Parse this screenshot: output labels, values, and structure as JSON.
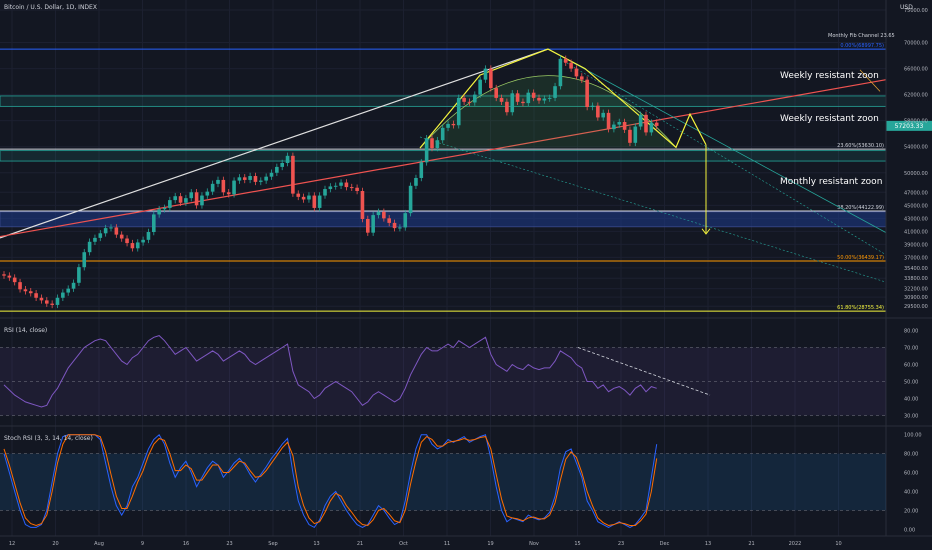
{
  "header": {
    "symbol": "Bitcoin / U.S. Dollar, 1D, INDEX",
    "currency": "USD"
  },
  "annotations": {
    "weekly_zone_1": "Weekly resistant zoon",
    "weekly_zone_2": "Weekly resistant zoon",
    "monthly_zone": "Monthly resistant zoon",
    "fib_channel": "Monthly Fib Channel 23.65"
  },
  "fib_levels": [
    {
      "label": "0.00%(68997.75)",
      "price": 68997.75,
      "color": "#2962ff"
    },
    {
      "label": "23.60%(53630.10)",
      "price": 53630.1,
      "color": "#d1d4dc"
    },
    {
      "label": "38.20%(44122.99)",
      "price": 44122.99,
      "color": "#d1d4dc"
    },
    {
      "label": "50.00%(36439.17)",
      "price": 36439.17,
      "color": "#ff9800"
    },
    {
      "label": "61.80%(28755.34)",
      "price": 28755.34,
      "color": "#f5f53d"
    }
  ],
  "colors": {
    "up": "#26a69a",
    "down": "#ef5350",
    "rsi": "#7e57c2",
    "stoch_k": "#2962ff",
    "stoch_d": "#ff6d00",
    "zone": "#26a69a",
    "monthly_zone": "#1e3a8a"
  },
  "chart_data": [
    {
      "type": "candlestick",
      "title": "Bitcoin / U.S. Dollar, 1D, INDEX",
      "ylim": [
        28000,
        75000
      ],
      "y_ticks": [
        29500,
        30900,
        32200,
        33800,
        35400,
        37000,
        39000,
        41000,
        43000,
        45000,
        47000,
        50000,
        54000,
        58000,
        62000,
        66000,
        70000,
        75000
      ],
      "price_tag": {
        "label": "57203.33",
        "value": 57203.33
      },
      "x_ticks": [
        "12",
        "20",
        "Aug",
        "9",
        "16",
        "23",
        "Sep",
        "13",
        "21",
        "Oct",
        "11",
        "19",
        "Nov",
        "15",
        "23",
        "Dec",
        "13",
        "21",
        "2022",
        "10"
      ],
      "close": [
        34200,
        33900,
        33200,
        32100,
        31800,
        31500,
        30800,
        30400,
        29900,
        29700,
        30800,
        31600,
        32200,
        33100,
        35500,
        37800,
        39400,
        40000,
        40700,
        41500,
        41600,
        40500,
        39900,
        39200,
        38400,
        39300,
        39700,
        40900,
        43600,
        44400,
        44600,
        45800,
        46400,
        45400,
        46100,
        47000,
        45000,
        46500,
        47100,
        48300,
        48900,
        47000,
        46700,
        48800,
        49300,
        48900,
        49500,
        48600,
        48800,
        49400,
        50000,
        50900,
        51500,
        52600,
        46800,
        46300,
        45900,
        46500,
        44600,
        46500,
        47500,
        47900,
        48000,
        48500,
        47800,
        47700,
        47200,
        42900,
        40800,
        43500,
        44000,
        43000,
        42300,
        41500,
        41600,
        43800,
        48000,
        49200,
        51600,
        55300,
        53800,
        55000,
        56900,
        57500,
        57300,
        61500,
        60900,
        60800,
        62000,
        64300,
        66000,
        63000,
        61500,
        60900,
        59300,
        62200,
        60900,
        60700,
        62300,
        61500,
        61100,
        61400,
        61500,
        63300,
        67500,
        66900,
        66000,
        64800,
        64300,
        60100,
        60300,
        58500,
        59200,
        56700,
        57400,
        57800,
        56600,
        54600,
        57100,
        58900,
        56200,
        57700,
        57200
      ],
      "rsi": {
        "name": "RSI (14, close)",
        "ylim": [
          25,
          85
        ],
        "levels": [
          70,
          50,
          30
        ],
        "y_ticks": [
          80,
          70,
          60,
          50,
          40,
          30
        ],
        "values": [
          48,
          45,
          42,
          40,
          38,
          37,
          36,
          35,
          36,
          42,
          46,
          52,
          58,
          62,
          66,
          70,
          72,
          74,
          75,
          74,
          70,
          66,
          62,
          60,
          64,
          66,
          70,
          74,
          76,
          77,
          74,
          70,
          66,
          68,
          70,
          66,
          62,
          64,
          66,
          68,
          66,
          62,
          64,
          66,
          68,
          66,
          62,
          60,
          62,
          64,
          66,
          68,
          70,
          72,
          56,
          48,
          46,
          44,
          40,
          42,
          46,
          48,
          50,
          48,
          46,
          44,
          40,
          36,
          38,
          42,
          44,
          42,
          40,
          38,
          40,
          46,
          54,
          60,
          66,
          70,
          68,
          68,
          70,
          72,
          70,
          74,
          72,
          70,
          72,
          74,
          76,
          66,
          60,
          58,
          56,
          60,
          58,
          57,
          60,
          58,
          57,
          58,
          58,
          62,
          68,
          66,
          64,
          60,
          58,
          50,
          50,
          46,
          48,
          44,
          46,
          47,
          45,
          42,
          46,
          48,
          44,
          47,
          46
        ]
      },
      "stoch": {
        "name": "Stoch RSI (3, 3, 14, 14, close)",
        "ylim": [
          -5,
          105
        ],
        "levels": [
          80,
          20
        ],
        "y_ticks": [
          100,
          80,
          60,
          40,
          20,
          0
        ],
        "k": [
          80,
          60,
          40,
          20,
          5,
          2,
          2,
          5,
          20,
          50,
          80,
          98,
          100,
          100,
          100,
          100,
          100,
          100,
          95,
          70,
          45,
          25,
          15,
          25,
          45,
          55,
          70,
          85,
          95,
          100,
          90,
          70,
          55,
          65,
          72,
          60,
          45,
          55,
          65,
          72,
          68,
          55,
          62,
          70,
          75,
          68,
          58,
          50,
          58,
          66,
          75,
          82,
          90,
          96,
          60,
          30,
          15,
          5,
          2,
          10,
          25,
          35,
          40,
          30,
          20,
          12,
          5,
          2,
          5,
          15,
          25,
          20,
          12,
          5,
          8,
          30,
          60,
          85,
          100,
          100,
          90,
          85,
          88,
          95,
          92,
          95,
          98,
          92,
          95,
          98,
          100,
          75,
          45,
          20,
          8,
          12,
          10,
          8,
          15,
          12,
          10,
          12,
          18,
          35,
          65,
          82,
          85,
          70,
          55,
          30,
          20,
          8,
          5,
          2,
          5,
          8,
          5,
          2,
          5,
          12,
          20,
          55,
          90
        ],
        "d": [
          85,
          68,
          48,
          28,
          12,
          6,
          4,
          6,
          15,
          40,
          70,
          90,
          100,
          100,
          100,
          100,
          100,
          100,
          98,
          82,
          58,
          35,
          22,
          22,
          35,
          50,
          62,
          78,
          90,
          96,
          94,
          80,
          62,
          62,
          68,
          64,
          52,
          52,
          60,
          68,
          68,
          60,
          60,
          66,
          72,
          70,
          62,
          55,
          56,
          62,
          70,
          78,
          86,
          92,
          78,
          45,
          25,
          12,
          6,
          8,
          18,
          30,
          38,
          35,
          25,
          18,
          10,
          5,
          4,
          10,
          20,
          22,
          16,
          9,
          7,
          20,
          48,
          72,
          92,
          98,
          95,
          88,
          88,
          92,
          93,
          94,
          96,
          94,
          95,
          97,
          98,
          85,
          58,
          32,
          14,
          12,
          11,
          9,
          12,
          13,
          11,
          11,
          15,
          28,
          52,
          74,
          82,
          76,
          60,
          40,
          25,
          12,
          7,
          4,
          5,
          7,
          6,
          4,
          4,
          9,
          16,
          40,
          75
        ]
      }
    }
  ]
}
